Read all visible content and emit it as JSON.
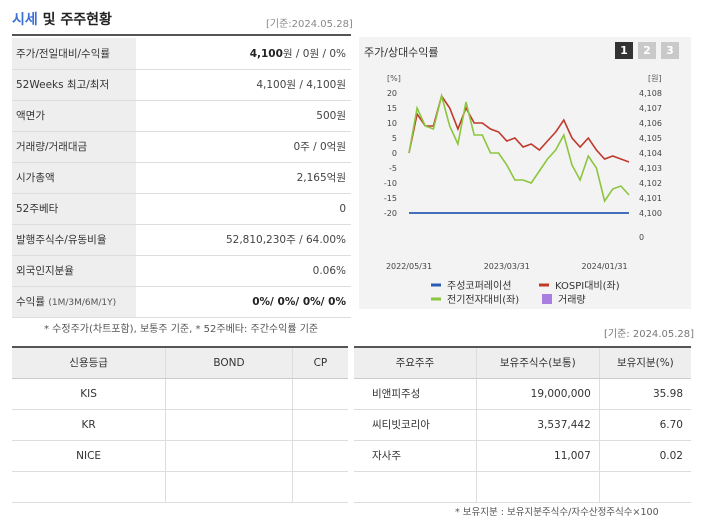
{
  "header": {
    "title_a": "시세",
    "title_b": " 및 주주현황",
    "date": "[기준:2024.05.28]"
  },
  "summary_rows": [
    {
      "label": "주가/전일대비/수익률",
      "value_bold": "4,100",
      "value_rest": "원 / 0원 / 0%"
    },
    {
      "label": "52Weeks 최고/최저",
      "value_bold": "",
      "value_rest": "4,100원 / 4,100원"
    },
    {
      "label": "액면가",
      "value_bold": "",
      "value_rest": "500원"
    },
    {
      "label": "거래량/거래대금",
      "value_bold": "",
      "value_rest": "0주 / 0억원"
    },
    {
      "label": "시가총액",
      "value_bold": "",
      "value_rest": "2,165억원"
    },
    {
      "label": "52주베타",
      "value_bold": "",
      "value_rest": "0"
    },
    {
      "label": "발행주식수/유동비율",
      "value_bold": "",
      "value_rest": "52,810,230주 / 64.00%"
    },
    {
      "label": "외국인지분율",
      "value_bold": "",
      "value_rest": "0.06%"
    },
    {
      "label": "수익률",
      "label_sub": "(1M/3M/6M/1Y)",
      "value_bold": "0%/ 0%/ 0%/ 0%",
      "value_rest": ""
    }
  ],
  "note1": "* 수정주가(차트포함), 보통주 기준, * 52주베타: 주간수익률 기준",
  "date2": "[기준: 2024.05.28]",
  "chart_panel": {
    "title": "주가/상대수익률",
    "tabs": [
      "1",
      "2",
      "3"
    ],
    "active_tab": "1"
  },
  "chart_data": {
    "type": "line",
    "left_unit": "[%]",
    "right_unit": "[원]",
    "left_ticks": [
      20,
      15,
      10,
      5,
      0,
      -5,
      -10,
      -15,
      -20
    ],
    "right_ticks": [
      "4,108",
      "4,107",
      "4,106",
      "4,105",
      "4,104",
      "4,103",
      "4,102",
      "4,101",
      "4,100",
      "0"
    ],
    "x_tick_labels": [
      "2022/05/31",
      "2023/03/31",
      "2024/01/31"
    ],
    "x": [
      0,
      1,
      2,
      3,
      4,
      5,
      6,
      7,
      8,
      9,
      10,
      11,
      12,
      13,
      14,
      15,
      16,
      17,
      18,
      19,
      20,
      21,
      22,
      23,
      24,
      25,
      26,
      27
    ],
    "ylim": [
      -20,
      20
    ],
    "series": [
      {
        "name": "주성코퍼레이션",
        "color": "#2a5bb5",
        "values": [
          -20,
          -20,
          -20,
          -20,
          -20,
          -20,
          -20,
          -20,
          -20,
          -20,
          -20,
          -20,
          -20,
          -20,
          -20,
          -20,
          -20,
          -20,
          -20,
          -20,
          -20,
          -20,
          -20,
          -20,
          -20,
          -20,
          -20,
          -20
        ]
      },
      {
        "name": "KOSPI대비(좌)",
        "color": "#c0392b",
        "values": [
          0,
          13,
          9,
          9,
          19,
          15,
          8,
          15,
          10,
          10,
          8,
          7,
          4,
          5,
          2,
          3,
          1,
          4,
          7,
          11,
          5,
          2,
          5,
          1,
          -2,
          -1,
          -2,
          -3
        ]
      },
      {
        "name": "전기전자대비(좌)",
        "color": "#8cc63f",
        "values": [
          0,
          15,
          9,
          8,
          19,
          9,
          3,
          17,
          6,
          6,
          0,
          0,
          -4,
          -9,
          -9,
          -10,
          -6,
          -2,
          1,
          6,
          -4,
          -9,
          -1,
          -5,
          -16,
          -12,
          -11,
          -14
        ]
      }
    ],
    "volume_legend": {
      "name": "거래량",
      "color": "#a97ee0"
    }
  },
  "credit_table": {
    "headers": [
      "신용등급",
      "BOND",
      "CP"
    ],
    "rows": [
      [
        "KIS",
        "",
        ""
      ],
      [
        "KR",
        "",
        ""
      ],
      [
        "NICE",
        "",
        ""
      ],
      [
        "",
        "",
        ""
      ]
    ]
  },
  "holders_table": {
    "headers": [
      "주요주주",
      "보유주식수(보통)",
      "보유지분(%)"
    ],
    "rows": [
      [
        "비앤피주성",
        "19,000,000",
        "35.98"
      ],
      [
        "씨티빗코리아",
        "3,537,442",
        "6.70"
      ],
      [
        "자사주",
        "11,007",
        "0.02"
      ],
      [
        "",
        "",
        ""
      ]
    ]
  },
  "note2": "* 보유지분 : 보유지분주식수/자수산정주식수×100"
}
